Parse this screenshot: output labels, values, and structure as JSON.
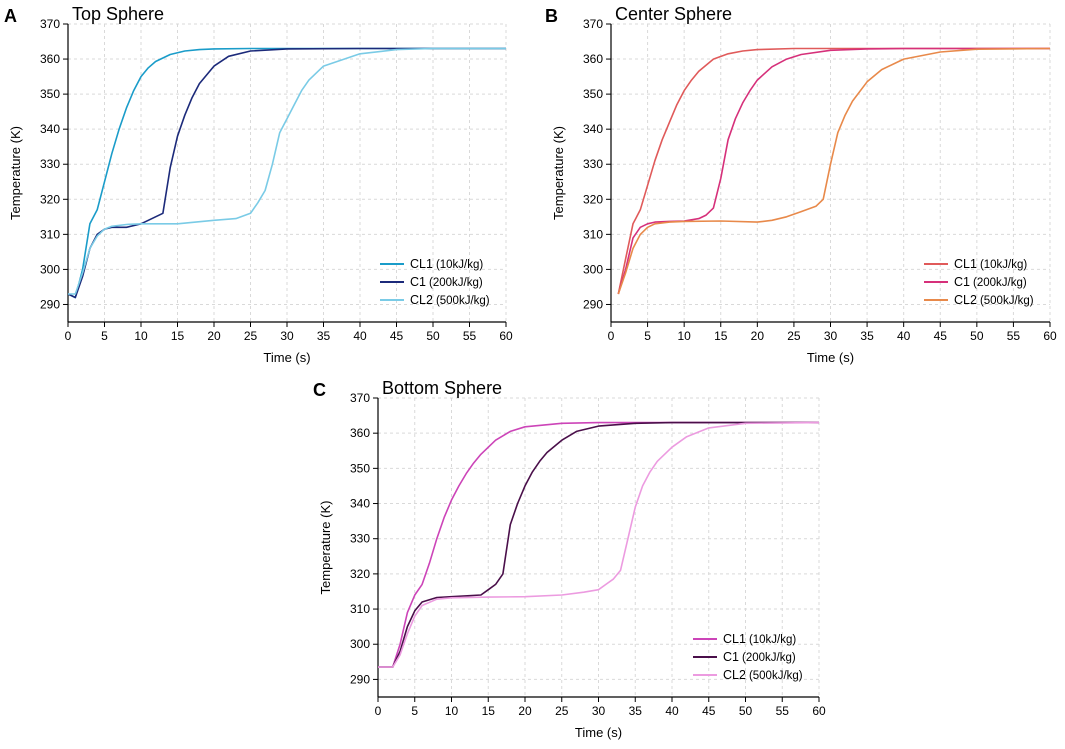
{
  "chart_data": [
    {
      "type": "line",
      "panel": "A",
      "title": "Top Sphere",
      "xlabel": "Time (s)",
      "ylabel": "Temperature (K)",
      "xlim": [
        0,
        60
      ],
      "ylim": [
        285,
        370
      ],
      "xticks": [
        0,
        5,
        10,
        15,
        20,
        25,
        30,
        35,
        40,
        45,
        50,
        55,
        60
      ],
      "yticks": [
        290,
        300,
        310,
        320,
        330,
        340,
        350,
        360,
        370
      ],
      "grid": true,
      "legend": "bottom-right",
      "series": [
        {
          "name": "CL1",
          "label_main": "CL1",
          "label_note": "(10kJ/kg)",
          "color": "#1a9cc9",
          "x": [
            0,
            1,
            2,
            3,
            4,
            5,
            6,
            7,
            8,
            9,
            10,
            11,
            12,
            14,
            16,
            18,
            20,
            25,
            30,
            40,
            60
          ],
          "y": [
            293,
            292,
            300,
            313,
            317,
            325,
            333,
            340,
            346,
            351,
            355,
            357.5,
            359.3,
            361.3,
            362.3,
            362.7,
            362.9,
            363,
            363,
            363,
            363
          ]
        },
        {
          "name": "C1",
          "label_main": "C1",
          "label_note": "(200kJ/kg)",
          "color": "#1c2a7a",
          "x": [
            0,
            1,
            2,
            3,
            4,
            5,
            6,
            8,
            10,
            12,
            13,
            14,
            15,
            16,
            17,
            18,
            20,
            22,
            25,
            30,
            40,
            60
          ],
          "y": [
            293,
            292,
            298,
            306,
            310,
            311.5,
            312,
            312,
            313,
            315,
            316,
            329,
            338,
            344,
            349,
            353,
            358,
            360.8,
            362.3,
            362.9,
            363,
            363
          ]
        },
        {
          "name": "CL2",
          "label_main": "CL2",
          "label_note": "(500kJ/kg)",
          "color": "#7acbe6",
          "x": [
            0,
            1,
            2,
            3,
            4,
            5,
            6,
            8,
            10,
            15,
            20,
            23,
            25,
            26,
            27,
            28,
            29,
            30,
            31,
            32,
            33,
            35,
            40,
            45,
            50,
            60
          ],
          "y": [
            293,
            293,
            299,
            306,
            309.5,
            311.5,
            312.3,
            312.8,
            313,
            313,
            314,
            314.5,
            316,
            319,
            322.5,
            330,
            339,
            343,
            347,
            351,
            354,
            358,
            361.5,
            362.7,
            363,
            363
          ]
        }
      ]
    },
    {
      "type": "line",
      "panel": "B",
      "title": "Center Sphere",
      "xlabel": "Time (s)",
      "ylabel": "Temperature (K)",
      "xlim": [
        0,
        60
      ],
      "ylim": [
        285,
        370
      ],
      "xticks": [
        0,
        5,
        10,
        15,
        20,
        25,
        30,
        35,
        40,
        45,
        50,
        55,
        60
      ],
      "yticks": [
        290,
        300,
        310,
        320,
        330,
        340,
        350,
        360,
        370
      ],
      "grid": true,
      "legend": "bottom-right",
      "series": [
        {
          "name": "CL1",
          "label_main": "CL1",
          "label_note": "(10kJ/kg)",
          "color": "#e05a5a",
          "x": [
            1,
            2,
            3,
            4,
            5,
            6,
            7,
            8,
            9,
            10,
            11,
            12,
            14,
            16,
            18,
            20,
            25,
            30,
            40,
            60
          ],
          "y": [
            293,
            303,
            313,
            317,
            324,
            331,
            337,
            342,
            347,
            351,
            354,
            356.5,
            360,
            361.5,
            362.3,
            362.7,
            363,
            363,
            363,
            363
          ]
        },
        {
          "name": "C1",
          "label_main": "C1",
          "label_note": "(200kJ/kg)",
          "color": "#d6307a",
          "x": [
            1,
            2,
            3,
            4,
            5,
            6,
            8,
            10,
            12,
            13,
            14,
            15,
            16,
            17,
            18,
            19,
            20,
            22,
            24,
            26,
            30,
            35,
            40,
            60
          ],
          "y": [
            293,
            300,
            309,
            312,
            313,
            313.5,
            313.7,
            313.8,
            314.5,
            315.5,
            317.5,
            326,
            337,
            343,
            347.5,
            351,
            354,
            357.8,
            360,
            361.3,
            362.5,
            362.9,
            363,
            363
          ]
        },
        {
          "name": "CL2",
          "label_main": "CL2",
          "label_note": "(500kJ/kg)",
          "color": "#e8894a",
          "x": [
            1,
            2,
            3,
            4,
            5,
            6,
            8,
            10,
            15,
            20,
            22,
            24,
            26,
            28,
            29,
            30,
            31,
            32,
            33,
            35,
            37,
            40,
            45,
            50,
            60
          ],
          "y": [
            293,
            299,
            306,
            310,
            312,
            313,
            313.5,
            313.7,
            313.8,
            313.5,
            314,
            315,
            316.5,
            318,
            320,
            330,
            339,
            344,
            348,
            353.5,
            357,
            360,
            362,
            362.8,
            363
          ]
        }
      ]
    },
    {
      "type": "line",
      "panel": "C",
      "title": "Bottom Sphere",
      "xlabel": "Time (s)",
      "ylabel": "Temperature (K)",
      "xlim": [
        0,
        60
      ],
      "ylim": [
        285,
        370
      ],
      "xticks": [
        0,
        5,
        10,
        15,
        20,
        25,
        30,
        35,
        40,
        45,
        50,
        55,
        60
      ],
      "yticks": [
        290,
        300,
        310,
        320,
        330,
        340,
        350,
        360,
        370
      ],
      "grid": true,
      "legend": "bottom-right",
      "series": [
        {
          "name": "CL1",
          "label_main": "CL1",
          "label_note": "(10kJ/kg)",
          "color": "#cc44b8",
          "x": [
            0,
            2,
            3,
            4,
            5,
            6,
            7,
            8,
            9,
            10,
            11,
            12,
            13,
            14,
            16,
            18,
            20,
            25,
            30,
            40,
            60
          ],
          "y": [
            293.5,
            293.5,
            300,
            309,
            314,
            317,
            323,
            330,
            336,
            341,
            345,
            348.5,
            351.5,
            354,
            358,
            360.5,
            361.8,
            362.8,
            363,
            363,
            363
          ]
        },
        {
          "name": "C1",
          "label_main": "C1",
          "label_note": "(200kJ/kg)",
          "color": "#4a0f4a",
          "x": [
            0,
            2,
            3,
            4,
            5,
            6,
            8,
            10,
            14,
            15,
            16,
            17,
            18,
            19,
            20,
            21,
            22,
            23,
            25,
            27,
            30,
            35,
            40,
            60
          ],
          "y": [
            293.5,
            293.5,
            298,
            305,
            309.5,
            312,
            313.3,
            313.5,
            314,
            315.5,
            317,
            320,
            334,
            340,
            345,
            349,
            352,
            354.5,
            358,
            360.5,
            362,
            362.8,
            363,
            363
          ]
        },
        {
          "name": "CL2",
          "label_main": "CL2",
          "label_note": "(500kJ/kg)",
          "color": "#ec9be0",
          "x": [
            0,
            2,
            3,
            4,
            5,
            6,
            8,
            10,
            15,
            20,
            25,
            28,
            30,
            31,
            32,
            33,
            34,
            35,
            36,
            37,
            38,
            40,
            42,
            45,
            50,
            60
          ],
          "y": [
            293.5,
            293.5,
            297,
            303,
            308,
            311,
            312.8,
            313.2,
            313.4,
            313.5,
            314,
            314.8,
            315.5,
            317,
            318.5,
            321,
            330,
            339,
            345,
            349,
            352,
            356,
            359,
            361.5,
            362.8,
            363
          ]
        }
      ]
    }
  ]
}
